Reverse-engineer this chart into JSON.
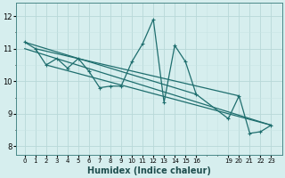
{
  "bg_color": "#d6eeee",
  "grid_color_major": "#b8d8d8",
  "grid_color_minor": "#c8e4e4",
  "line_color": "#1e6e6e",
  "line_width": 0.9,
  "xlabel": "Humidex (Indice chaleur)",
  "xlabel_fontsize": 7,
  "yticks": [
    8,
    9,
    10,
    11,
    12
  ],
  "xlim": [
    -0.8,
    24.0
  ],
  "ylim": [
    7.75,
    12.4
  ],
  "series": [
    [
      0,
      11.2
    ],
    [
      1,
      11.0
    ],
    [
      2,
      10.5
    ],
    [
      3,
      10.7
    ],
    [
      4,
      10.4
    ],
    [
      5,
      10.7
    ],
    [
      6,
      10.3
    ],
    [
      7,
      9.8
    ],
    [
      8,
      9.85
    ],
    [
      9,
      9.85
    ],
    [
      10,
      10.6
    ],
    [
      11,
      11.15
    ],
    [
      12,
      11.9
    ],
    [
      13,
      9.35
    ],
    [
      14,
      11.1
    ],
    [
      15,
      10.6
    ],
    [
      16,
      9.6
    ],
    [
      19,
      8.85
    ],
    [
      20,
      9.55
    ],
    [
      21,
      8.4
    ],
    [
      22,
      8.45
    ],
    [
      23,
      8.65
    ]
  ],
  "trend_lines": [
    {
      "x": [
        0,
        16
      ],
      "y": [
        11.2,
        9.6
      ]
    },
    {
      "x": [
        0,
        23
      ],
      "y": [
        11.0,
        8.65
      ]
    },
    {
      "x": [
        1,
        20
      ],
      "y": [
        11.0,
        9.55
      ]
    },
    {
      "x": [
        2,
        23
      ],
      "y": [
        10.5,
        8.65
      ]
    }
  ]
}
